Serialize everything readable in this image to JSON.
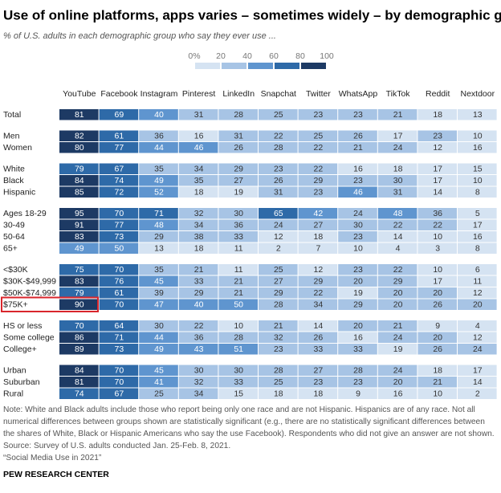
{
  "chart_data": {
    "type": "heatmap",
    "title": "Use of online platforms, apps varies – sometimes widely – by demographic group",
    "subtitle": "% of U.S. adults in each demographic group who say they ever use ...",
    "legend_ticks": [
      {
        "value": 0,
        "label": "0%"
      },
      20,
      40,
      60,
      80,
      100
    ],
    "colors": [
      "#d5e3f2",
      "#a7c4e5",
      "#5f95cf",
      "#2e6aa8",
      "#1d3a64"
    ],
    "columns": [
      "YouTube",
      "Facebook",
      "Instagram",
      "Pinterest",
      "LinkedIn",
      "Snapchat",
      "Twitter",
      "WhatsApp",
      "TikTok",
      "Reddit",
      "Nextdoor"
    ],
    "groups": [
      {
        "rows": [
          {
            "label": "Total",
            "values": [
              81,
              69,
              40,
              31,
              28,
              25,
              23,
              23,
              21,
              18,
              13
            ]
          }
        ]
      },
      {
        "rows": [
          {
            "label": "Men",
            "values": [
              82,
              61,
              36,
              16,
              31,
              22,
              25,
              26,
              17,
              23,
              10
            ]
          },
          {
            "label": "Women",
            "values": [
              80,
              77,
              44,
              46,
              26,
              28,
              22,
              21,
              24,
              12,
              16
            ]
          }
        ]
      },
      {
        "rows": [
          {
            "label": "White",
            "values": [
              79,
              67,
              35,
              34,
              29,
              23,
              22,
              16,
              18,
              17,
              15
            ]
          },
          {
            "label": "Black",
            "values": [
              84,
              74,
              49,
              35,
              27,
              26,
              29,
              23,
              30,
              17,
              10
            ]
          },
          {
            "label": "Hispanic",
            "values": [
              85,
              72,
              52,
              18,
              19,
              31,
              23,
              46,
              31,
              14,
              8
            ]
          }
        ]
      },
      {
        "rows": [
          {
            "label": "Ages 18-29",
            "values": [
              95,
              70,
              71,
              32,
              30,
              65,
              42,
              24,
              48,
              36,
              5
            ]
          },
          {
            "label": "30-49",
            "values": [
              91,
              77,
              48,
              34,
              36,
              24,
              27,
              30,
              22,
              22,
              17
            ]
          },
          {
            "label": "50-64",
            "values": [
              83,
              73,
              29,
              38,
              33,
              12,
              18,
              23,
              14,
              10,
              16
            ]
          },
          {
            "label": "65+",
            "values": [
              49,
              50,
              13,
              18,
              11,
              2,
              7,
              10,
              4,
              3,
              8
            ]
          }
        ]
      },
      {
        "rows": [
          {
            "label": "<$30K",
            "values": [
              75,
              70,
              35,
              21,
              11,
              25,
              12,
              23,
              22,
              10,
              6
            ]
          },
          {
            "label": "$30K-$49,999",
            "values": [
              83,
              76,
              45,
              33,
              21,
              27,
              29,
              20,
              29,
              17,
              11
            ]
          },
          {
            "label": "$50K-$74,999",
            "values": [
              79,
              61,
              39,
              29,
              21,
              29,
              22,
              19,
              20,
              20,
              12
            ]
          },
          {
            "label": "$75K+",
            "values": [
              90,
              70,
              47,
              40,
              50,
              28,
              34,
              29,
              20,
              26,
              20
            ]
          }
        ]
      },
      {
        "rows": [
          {
            "label": "HS or less",
            "values": [
              70,
              64,
              30,
              22,
              10,
              21,
              14,
              20,
              21,
              9,
              4
            ]
          },
          {
            "label": "Some college",
            "values": [
              86,
              71,
              44,
              36,
              28,
              32,
              26,
              16,
              24,
              20,
              12
            ]
          },
          {
            "label": "College+",
            "values": [
              89,
              73,
              49,
              43,
              51,
              23,
              33,
              33,
              19,
              26,
              24
            ]
          }
        ]
      },
      {
        "rows": [
          {
            "label": "Urban",
            "values": [
              84,
              70,
              45,
              30,
              30,
              28,
              27,
              28,
              24,
              18,
              17
            ]
          },
          {
            "label": "Suburban",
            "values": [
              81,
              70,
              41,
              32,
              33,
              25,
              23,
              23,
              20,
              21,
              14
            ]
          },
          {
            "label": "Rural",
            "values": [
              74,
              67,
              25,
              34,
              15,
              18,
              18,
              9,
              16,
              10,
              2
            ]
          }
        ]
      }
    ],
    "notes": [
      "Note: White and Black adults include those who report being only one race and are not Hispanic. Hispanics are of any race. Not all numerical differences between groups shown are statistically significant (e.g., there are no statistically significant differences between the shares of White, Black or Hispanic Americans who say the use Facebook). Respondents who did not give an answer are not shown.",
      "Source: Survey of U.S. adults conducted Jan. 25-Feb. 8, 2021.",
      "“Social Media Use in 2021”"
    ],
    "source": "PEW RESEARCH CENTER"
  }
}
